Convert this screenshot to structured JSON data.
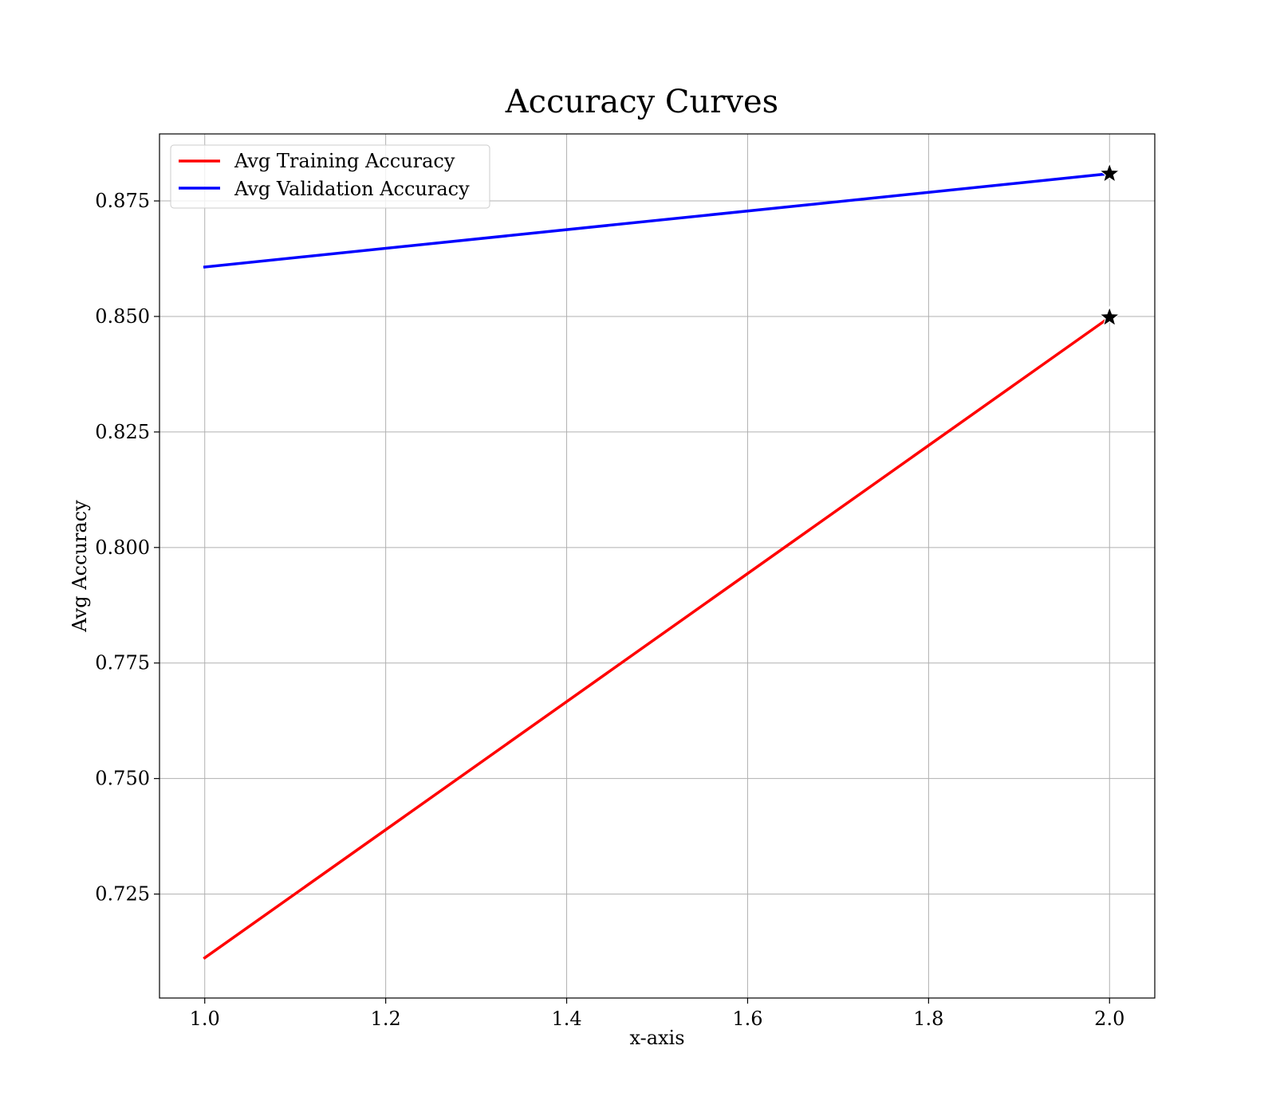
{
  "chart_data": {
    "type": "line",
    "title": "Accuracy Curves",
    "xlabel": "x-axis",
    "ylabel": "Avg Accuracy",
    "xlim": [
      0.95,
      2.05
    ],
    "ylim": [
      0.7025,
      0.8895
    ],
    "xticks": [
      1.0,
      1.2,
      1.4,
      1.6,
      1.8,
      2.0
    ],
    "xtick_labels": [
      "1.0",
      "1.2",
      "1.4",
      "1.6",
      "1.8",
      "2.0"
    ],
    "yticks": [
      0.725,
      0.75,
      0.775,
      0.8,
      0.825,
      0.85,
      0.875
    ],
    "ytick_labels": [
      "0.725",
      "0.750",
      "0.775",
      "0.800",
      "0.825",
      "0.850",
      "0.875"
    ],
    "grid": true,
    "legend_position": "upper-left",
    "series": [
      {
        "name": "Avg Training Accuracy",
        "color": "#ff0000",
        "x": [
          1.0,
          2.0
        ],
        "y": [
          0.7112,
          0.8498
        ],
        "marker": "star at last point"
      },
      {
        "name": "Avg Validation Accuracy",
        "color": "#0000ff",
        "x": [
          1.0,
          2.0
        ],
        "y": [
          0.8607,
          0.8809
        ],
        "marker": "star at last point"
      }
    ]
  }
}
